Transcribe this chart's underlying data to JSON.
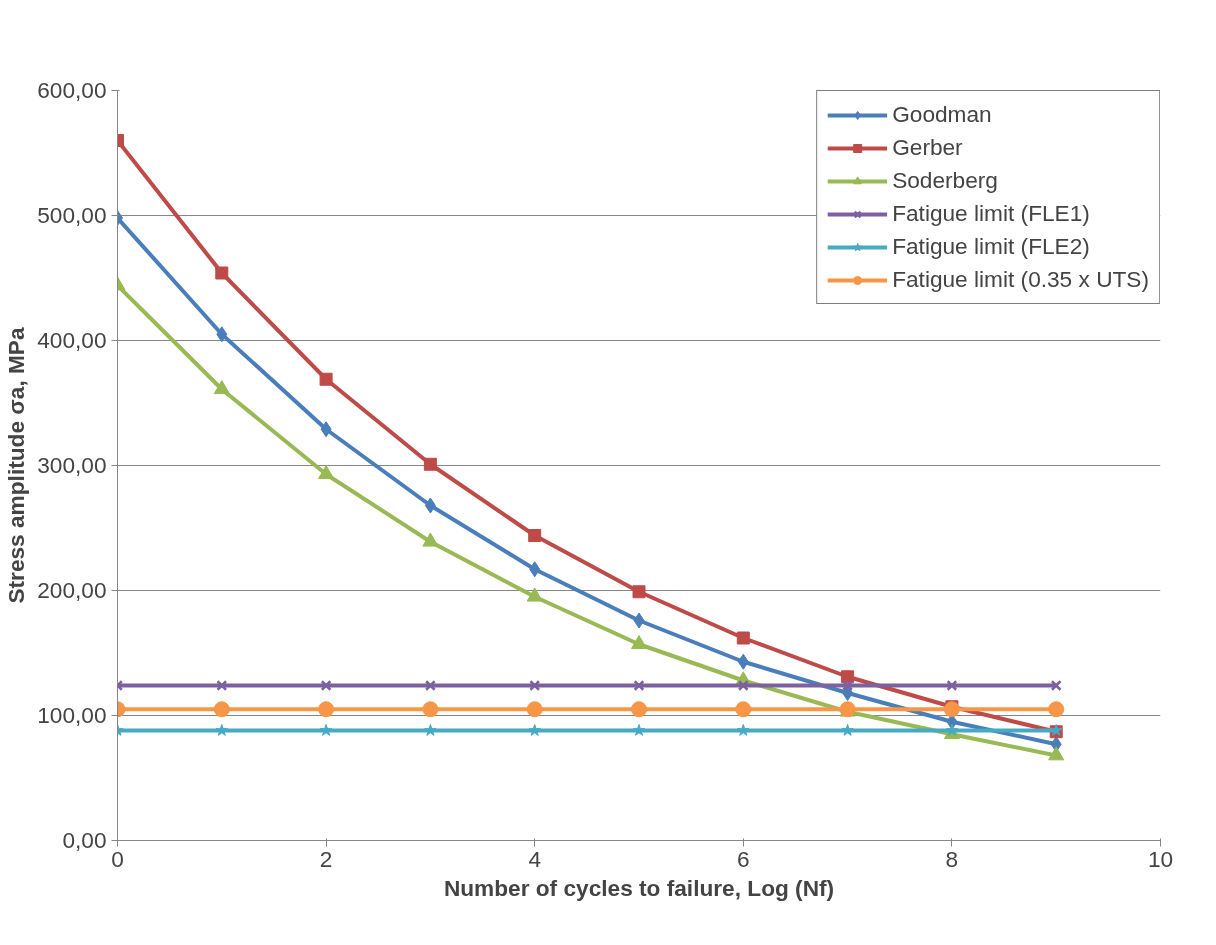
{
  "chart_data": {
    "type": "line",
    "xlabel": "Number of cycles to failure, Log (Nf)",
    "ylabel": "Stress amplitude σa, MPa",
    "x": [
      0,
      1,
      2,
      3,
      4,
      5,
      6,
      7,
      8,
      9
    ],
    "series": [
      {
        "name": "Goodman",
        "color": "#4a7ebb",
        "marker": "diamond",
        "values": [
          498,
          405,
          329,
          268,
          217,
          176,
          143,
          118,
          95,
          77
        ]
      },
      {
        "name": "Gerber",
        "color": "#be4b48",
        "marker": "square",
        "values": [
          560,
          454,
          369,
          301,
          244,
          199,
          162,
          131,
          107,
          87
        ]
      },
      {
        "name": "Soderberg",
        "color": "#98b954",
        "marker": "triangle",
        "values": [
          444,
          361,
          293,
          239,
          195,
          157,
          128,
          103,
          85,
          68
        ]
      },
      {
        "name": "Fatigue limit (FLE1)",
        "color": "#7d60a0",
        "marker": "cross",
        "values": [
          124,
          124,
          124,
          124,
          124,
          124,
          124,
          124,
          124,
          124
        ]
      },
      {
        "name": "Fatigue limit (FLE2)",
        "color": "#46aac5",
        "marker": "star",
        "values": [
          88,
          88,
          88,
          88,
          88,
          88,
          88,
          88,
          88,
          88
        ]
      },
      {
        "name": "Fatigue limit (0.35 x UTS)",
        "color": "#f79646",
        "marker": "circle",
        "values": [
          105,
          105,
          105,
          105,
          105,
          105,
          105,
          105,
          105,
          105
        ]
      }
    ],
    "xlim": [
      0,
      10
    ],
    "xticks": [
      0,
      2,
      4,
      6,
      8,
      10
    ],
    "ylim": [
      0,
      600
    ],
    "yticks": [
      {
        "value": 0,
        "label": "0,00"
      },
      {
        "value": 100,
        "label": "100,00"
      },
      {
        "value": 200,
        "label": "200,00"
      },
      {
        "value": 300,
        "label": "300,00"
      },
      {
        "value": 400,
        "label": "400,00"
      },
      {
        "value": 500,
        "label": "500,00"
      },
      {
        "value": 600,
        "label": "600,00"
      }
    ],
    "grid": "y",
    "legend": "top right",
    "line_style": "solid"
  }
}
